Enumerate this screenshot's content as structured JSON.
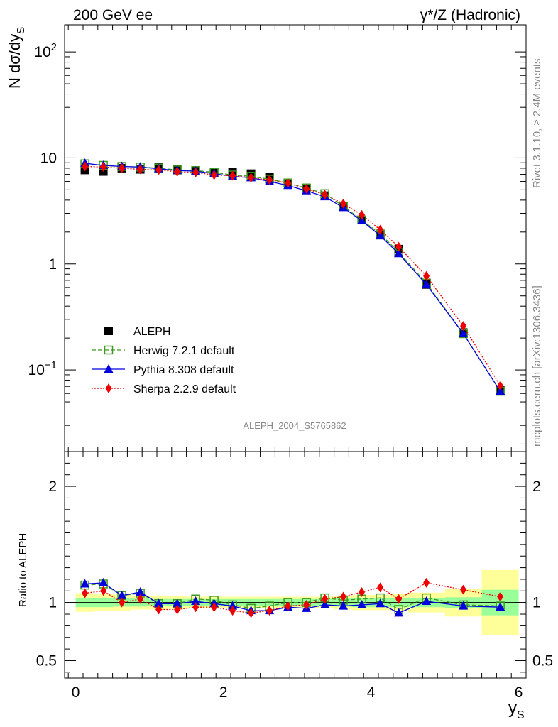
{
  "header": {
    "left": "200 GeV ee",
    "right": "γ*/Z (Hadronic)"
  },
  "side": {
    "rivet": "Rivet 3.1.10, ≥ 2.4M events",
    "mcplots": "mcplots.cern.ch [arXiv:1306.3436]"
  },
  "watermark": "ALEPH_2004_S5765862",
  "chart_data": [
    {
      "type": "line",
      "ylabel": "N dσ/dy",
      "ylabel_sub": "S",
      "yscale": "log",
      "ylim": [
        0.017,
        180
      ],
      "xlim": [
        -0.15,
        6.1
      ],
      "yticks": [
        {
          "value": 100,
          "base": "10",
          "exp": "2"
        },
        {
          "value": 10,
          "base": "10",
          "exp": ""
        },
        {
          "value": 1,
          "base": "1",
          "exp": ""
        },
        {
          "value": 0.1,
          "base": "10",
          "exp": "−1"
        }
      ],
      "x": [
        0.125,
        0.375,
        0.625,
        0.875,
        1.125,
        1.375,
        1.625,
        1.875,
        2.125,
        2.375,
        2.625,
        2.875,
        3.125,
        3.375,
        3.625,
        3.875,
        4.125,
        4.375,
        4.75,
        5.25,
        5.75
      ],
      "legend": "upper-left",
      "series": [
        {
          "name": "ALEPH",
          "color": "#000000",
          "marker": "square-filled",
          "line": "none",
          "values": [
            7.7,
            7.45,
            8.0,
            7.8,
            8.1,
            7.8,
            7.6,
            7.2,
            7.3,
            7.1,
            6.6,
            5.8,
            5.2,
            4.4,
            3.5,
            2.6,
            1.87,
            1.38,
            0.64,
            0.225,
            0.065
          ]
        },
        {
          "name": "Herwig 7.2.1 default",
          "color": "#3c9a1e",
          "marker": "square-open",
          "line": "dashed",
          "values": [
            8.8,
            8.5,
            8.3,
            8.2,
            8.0,
            7.7,
            7.6,
            7.3,
            6.9,
            6.7,
            6.3,
            5.8,
            5.2,
            4.6,
            3.5,
            2.6,
            1.92,
            1.29,
            0.66,
            0.22,
            0.063
          ]
        },
        {
          "name": "Pythia 8.308 default",
          "color": "#0000dd",
          "marker": "triangle-filled",
          "line": "solid",
          "values": [
            8.9,
            8.5,
            8.3,
            8.2,
            7.9,
            7.6,
            7.5,
            7.1,
            6.7,
            6.5,
            6.0,
            5.5,
            4.9,
            4.3,
            3.4,
            2.55,
            1.85,
            1.25,
            0.64,
            0.22,
            0.063
          ]
        },
        {
          "name": "Sherpa 2.2.9 default",
          "color": "#ee0000",
          "marker": "diamond-filled",
          "line": "dotted",
          "values": [
            8.3,
            8.2,
            8.0,
            7.8,
            7.7,
            7.4,
            7.3,
            6.9,
            6.8,
            6.5,
            6.2,
            5.8,
            5.1,
            4.5,
            3.7,
            2.9,
            2.1,
            1.45,
            0.77,
            0.26,
            0.071
          ]
        }
      ]
    },
    {
      "type": "line",
      "ylabel": "Ratio to ALEPH",
      "xlabel": "y",
      "xlabel_sub": "S",
      "ylim": [
        0.35,
        2.3
      ],
      "xlim": [
        -0.15,
        6.1
      ],
      "xticks": [
        0,
        2,
        4,
        6
      ],
      "yticks": [
        0.5,
        1,
        2
      ],
      "reference": 1,
      "bands": {
        "edges": [
          0,
          0.25,
          0.5,
          0.75,
          1.0,
          1.25,
          1.5,
          1.75,
          2.0,
          2.25,
          2.5,
          2.75,
          3.0,
          3.25,
          3.5,
          3.75,
          4.0,
          4.25,
          4.5,
          5.0,
          5.5,
          6.0
        ],
        "stat_half": [
          0.04,
          0.04,
          0.035,
          0.035,
          0.03,
          0.03,
          0.03,
          0.03,
          0.03,
          0.03,
          0.03,
          0.03,
          0.03,
          0.03,
          0.035,
          0.04,
          0.04,
          0.04,
          0.04,
          0.045,
          0.11
        ],
        "total_half": [
          0.08,
          0.075,
          0.07,
          0.06,
          0.06,
          0.055,
          0.05,
          0.05,
          0.05,
          0.05,
          0.05,
          0.05,
          0.05,
          0.05,
          0.06,
          0.065,
          0.065,
          0.075,
          0.085,
          0.12,
          0.28
        ],
        "stat_color": "#99ff99",
        "total_color": "#ffff99"
      },
      "series": [
        {
          "name": "Herwig 7.2.1 default",
          "color": "#3c9a1e",
          "marker": "square-open",
          "line": "dashed",
          "values": [
            1.15,
            1.16,
            1.06,
            1.08,
            0.99,
            0.99,
            1.03,
            1.02,
            0.98,
            0.95,
            0.97,
            1.0,
            1.0,
            1.04,
            1.02,
            1.03,
            1.04,
            0.94,
            1.04,
            0.98,
            0.97
          ]
        },
        {
          "name": "Pythia 8.308 default",
          "color": "#0000dd",
          "marker": "triangle-filled",
          "line": "solid",
          "values": [
            1.16,
            1.17,
            1.06,
            1.09,
            0.99,
            0.99,
            1.01,
            0.99,
            0.97,
            0.93,
            0.93,
            0.96,
            0.95,
            0.98,
            0.97,
            0.98,
            0.99,
            0.91,
            1.01,
            0.97,
            0.96
          ]
        },
        {
          "name": "Sherpa 2.2.9 default",
          "color": "#ee0000",
          "marker": "diamond-filled",
          "line": "dotted",
          "values": [
            1.08,
            1.1,
            1.0,
            1.03,
            0.94,
            0.94,
            0.96,
            0.96,
            0.93,
            0.91,
            0.93,
            0.97,
            0.98,
            1.03,
            1.05,
            1.09,
            1.13,
            1.03,
            1.17,
            1.11,
            1.05
          ]
        }
      ]
    }
  ]
}
